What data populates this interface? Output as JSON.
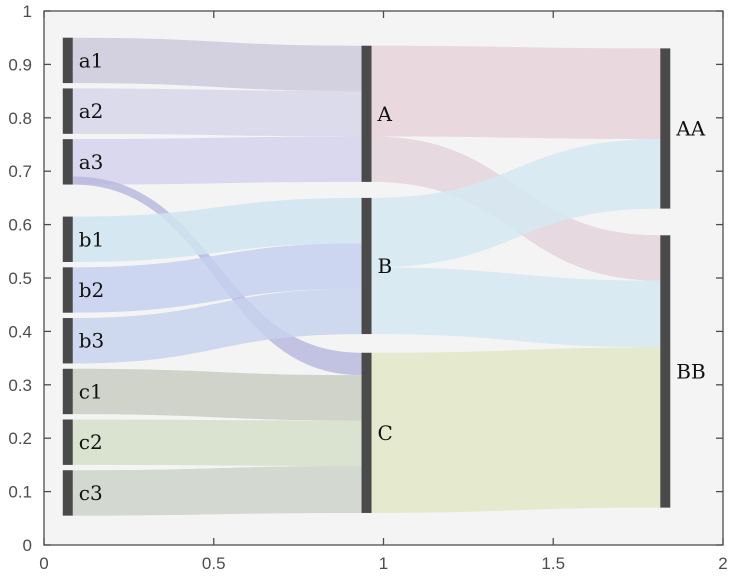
{
  "chart_data": {
    "type": "sankey",
    "title": "",
    "xlabel": "",
    "ylabel": "",
    "xlim": [
      0,
      2
    ],
    "ylim": [
      0,
      1
    ],
    "x_ticks": [
      0,
      0.5,
      1,
      1.5,
      2
    ],
    "x_tick_labels": [
      "0",
      "0.5",
      "1",
      "1.5",
      "2"
    ],
    "y_ticks": [
      0,
      0.1,
      0.2,
      0.3,
      0.4,
      0.5,
      0.6,
      0.7,
      0.8,
      0.9,
      1
    ],
    "y_tick_labels": [
      "0",
      "0.1",
      "0.2",
      "0.3",
      "0.4",
      "0.5",
      "0.6",
      "0.7",
      "0.8",
      "0.9",
      "1"
    ],
    "grid": false,
    "colors": {
      "plot_background": "#f4f4f4",
      "node": "#4a4a4a",
      "axis": "#4d4d4d"
    },
    "nodes": [
      {
        "name": "a1",
        "x": 0.07,
        "y0": 0.865,
        "y1": 0.95
      },
      {
        "name": "a2",
        "x": 0.07,
        "y0": 0.77,
        "y1": 0.855
      },
      {
        "name": "a3",
        "x": 0.07,
        "y0": 0.675,
        "y1": 0.76
      },
      {
        "name": "b1",
        "x": 0.07,
        "y0": 0.53,
        "y1": 0.615
      },
      {
        "name": "b2",
        "x": 0.07,
        "y0": 0.435,
        "y1": 0.52
      },
      {
        "name": "b3",
        "x": 0.07,
        "y0": 0.34,
        "y1": 0.425
      },
      {
        "name": "c1",
        "x": 0.07,
        "y0": 0.245,
        "y1": 0.33
      },
      {
        "name": "c2",
        "x": 0.07,
        "y0": 0.15,
        "y1": 0.235
      },
      {
        "name": "c3",
        "x": 0.07,
        "y0": 0.055,
        "y1": 0.14
      },
      {
        "name": "A",
        "x": 0.95,
        "y0": 0.68,
        "y1": 0.935
      },
      {
        "name": "B",
        "x": 0.95,
        "y0": 0.395,
        "y1": 0.65
      },
      {
        "name": "C",
        "x": 0.95,
        "y0": 0.06,
        "y1": 0.36
      },
      {
        "name": "AA",
        "x": 1.83,
        "y0": 0.63,
        "y1": 0.93
      },
      {
        "name": "BB",
        "x": 1.83,
        "y0": 0.07,
        "y1": 0.58
      }
    ],
    "links": [
      {
        "source": "a1",
        "target": "A",
        "s0": 0.865,
        "s1": 0.95,
        "t0": 0.85,
        "t1": 0.935,
        "color": "#cccadb"
      },
      {
        "source": "a2",
        "target": "A",
        "s0": 0.77,
        "s1": 0.855,
        "t0": 0.765,
        "t1": 0.85,
        "color": "#d6d6ea"
      },
      {
        "source": "a3",
        "target": "A",
        "s0": 0.675,
        "s1": 0.76,
        "t0": 0.68,
        "t1": 0.765,
        "color": "#d4d2ec"
      },
      {
        "source": "a3",
        "target": "C",
        "s0": 0.675,
        "s1": 0.69,
        "t0": 0.318,
        "t1": 0.36,
        "color": "#b9b9de"
      },
      {
        "source": "b1",
        "target": "B",
        "s0": 0.53,
        "s1": 0.615,
        "t0": 0.565,
        "t1": 0.65,
        "color": "#cfe5f0"
      },
      {
        "source": "b2",
        "target": "B",
        "s0": 0.435,
        "s1": 0.52,
        "t0": 0.48,
        "t1": 0.565,
        "color": "#c4d0ee"
      },
      {
        "source": "b3",
        "target": "B",
        "s0": 0.34,
        "s1": 0.425,
        "t0": 0.395,
        "t1": 0.48,
        "color": "#c7d2ec"
      },
      {
        "source": "c1",
        "target": "C",
        "s0": 0.245,
        "s1": 0.33,
        "t0": 0.233,
        "t1": 0.318,
        "color": "#c9cdc2"
      },
      {
        "source": "c2",
        "target": "C",
        "s0": 0.15,
        "s1": 0.235,
        "t0": 0.148,
        "t1": 0.233,
        "color": "#d3dfc8"
      },
      {
        "source": "c3",
        "target": "C",
        "s0": 0.055,
        "s1": 0.14,
        "t0": 0.06,
        "t1": 0.148,
        "color": "#cdd2ca"
      },
      {
        "source": "A",
        "target": "AA",
        "s0": 0.765,
        "s1": 0.935,
        "t0": 0.76,
        "t1": 0.93,
        "color": "#e6d3da"
      },
      {
        "source": "A",
        "target": "BB",
        "s0": 0.68,
        "s1": 0.765,
        "t0": 0.495,
        "t1": 0.58,
        "color": "#e3d3dc"
      },
      {
        "source": "B",
        "target": "AA",
        "s0": 0.52,
        "s1": 0.65,
        "t0": 0.63,
        "t1": 0.76,
        "color": "#d3e8f1"
      },
      {
        "source": "B",
        "target": "BB",
        "s0": 0.395,
        "s1": 0.52,
        "t0": 0.37,
        "t1": 0.495,
        "color": "#d3e8f1"
      },
      {
        "source": "C",
        "target": "BB",
        "s0": 0.06,
        "s1": 0.36,
        "t0": 0.07,
        "t1": 0.37,
        "color": "#e2e7c8"
      }
    ]
  }
}
